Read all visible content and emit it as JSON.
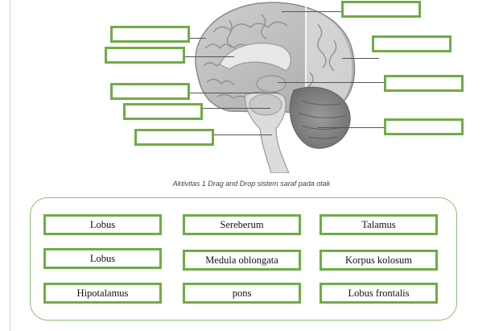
{
  "caption": "Aktivitas  1 Drag and Drop sistem saraf pada otak",
  "colors": {
    "accent_green": "#6fac46",
    "panel_border": "#8cc06a",
    "leader_line": "#555555"
  },
  "drop_targets": [
    {
      "id": "target-1",
      "value": ""
    },
    {
      "id": "target-2",
      "value": ""
    },
    {
      "id": "target-3",
      "value": ""
    },
    {
      "id": "target-4",
      "value": ""
    },
    {
      "id": "target-5",
      "value": ""
    },
    {
      "id": "target-6",
      "value": ""
    },
    {
      "id": "target-7",
      "value": ""
    },
    {
      "id": "target-8",
      "value": ""
    },
    {
      "id": "target-9",
      "value": ""
    }
  ],
  "answer_options": [
    {
      "label": "Lobus"
    },
    {
      "label": "Sereberum"
    },
    {
      "label": "Talamus"
    },
    {
      "label": "Lobus"
    },
    {
      "label": "Medula oblongata"
    },
    {
      "label": "Korpus kolosum"
    },
    {
      "label": "Hipotalamus"
    },
    {
      "label": "pons"
    },
    {
      "label": "Lobus frontalis"
    }
  ]
}
